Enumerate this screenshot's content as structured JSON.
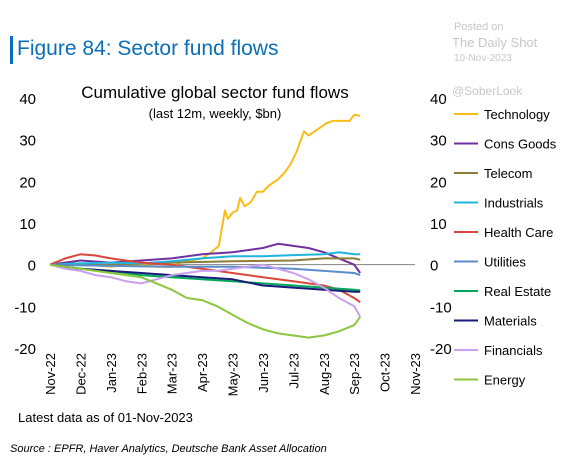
{
  "figure_title": "Figure 84: Sector fund flows",
  "watermark": {
    "posted": "Posted on",
    "site": "The Daily Shot",
    "date": "10-Nov-2023",
    "handle": "@SoberLook"
  },
  "footnote": "Latest data as of 01-Nov-2023",
  "source": "Source : EPFR, Haver Analytics, Deutsche Bank Asset Allocation",
  "chart_data": {
    "type": "line",
    "title": "Cumulative global sector fund flows",
    "subtitle": "(last 12m, weekly, $bn)",
    "xlabel": "",
    "ylabel": "",
    "x_start": "2022-11",
    "x_end": "2023-11",
    "x_ticks": [
      "Nov-22",
      "Dec-22",
      "Jan-23",
      "Feb-23",
      "Mar-23",
      "Apr-23",
      "May-23",
      "Jun-23",
      "Jul-23",
      "Aug-23",
      "Sep-23",
      "Oct-23",
      "Nov-23"
    ],
    "ylim": [
      -20,
      40
    ],
    "y_ticks": [
      "-20",
      "-10",
      "0",
      "10",
      "20",
      "30",
      "40"
    ],
    "grid": false,
    "legend": "right",
    "series": [
      {
        "name": "Technology",
        "color": "#f7be17",
        "points": [
          [
            0,
            0
          ],
          [
            0.5,
            0.5
          ],
          [
            1,
            0.2
          ],
          [
            1.5,
            -0.1
          ],
          [
            2,
            -0.5
          ],
          [
            2.5,
            0
          ],
          [
            3,
            0
          ],
          [
            3.5,
            -0.5
          ],
          [
            4,
            -0.5
          ],
          [
            4.3,
            0.5
          ],
          [
            4.5,
            0.8
          ],
          [
            5,
            1.5
          ],
          [
            5.3,
            3
          ],
          [
            5.55,
            4.5
          ],
          [
            5.75,
            13
          ],
          [
            5.85,
            11
          ],
          [
            6,
            12.5
          ],
          [
            6.15,
            13
          ],
          [
            6.25,
            16
          ],
          [
            6.4,
            14
          ],
          [
            6.6,
            15
          ],
          [
            6.8,
            17.5
          ],
          [
            7,
            17.5
          ],
          [
            7.2,
            19
          ],
          [
            7.5,
            20.5
          ],
          [
            7.7,
            22
          ],
          [
            7.9,
            24
          ],
          [
            8.1,
            27
          ],
          [
            8.25,
            30
          ],
          [
            8.35,
            32
          ],
          [
            8.5,
            31
          ],
          [
            8.7,
            32
          ],
          [
            8.9,
            33
          ],
          [
            9.1,
            34
          ],
          [
            9.3,
            34.5
          ],
          [
            9.6,
            34.5
          ],
          [
            9.85,
            34.5
          ],
          [
            10,
            36
          ],
          [
            10.2,
            35.7
          ]
        ]
      },
      {
        "name": "Cons Goods",
        "color": "#7030a0",
        "points": [
          [
            0,
            0
          ],
          [
            1,
            1
          ],
          [
            2,
            0.5
          ],
          [
            3,
            1
          ],
          [
            4,
            1.5
          ],
          [
            5,
            2.5
          ],
          [
            6,
            3
          ],
          [
            7,
            4
          ],
          [
            7.5,
            5
          ],
          [
            8,
            4.5
          ],
          [
            8.5,
            4
          ],
          [
            9,
            3
          ],
          [
            9.5,
            1.5
          ],
          [
            10,
            0
          ],
          [
            10.2,
            -2
          ]
        ]
      },
      {
        "name": "Telecom",
        "color": "#8b7d3a",
        "points": [
          [
            0,
            0
          ],
          [
            2,
            0
          ],
          [
            4,
            0.5
          ],
          [
            6,
            0.8
          ],
          [
            8,
            1
          ],
          [
            9,
            1.5
          ],
          [
            10,
            1.5
          ],
          [
            10.2,
            1.2
          ]
        ]
      },
      {
        "name": "Industrials",
        "color": "#21b4dd",
        "points": [
          [
            0,
            0
          ],
          [
            1,
            0.3
          ],
          [
            2,
            0.5
          ],
          [
            3,
            0.3
          ],
          [
            4,
            0.8
          ],
          [
            5,
            1.5
          ],
          [
            6,
            2
          ],
          [
            7,
            2
          ],
          [
            8,
            2.3
          ],
          [
            9,
            2.5
          ],
          [
            9.5,
            3
          ],
          [
            10,
            2.5
          ],
          [
            10.2,
            2.5
          ]
        ]
      },
      {
        "name": "Health Care",
        "color": "#d9473a",
        "points": [
          [
            0,
            0
          ],
          [
            0.5,
            1.5
          ],
          [
            1,
            2.5
          ],
          [
            1.5,
            2.2
          ],
          [
            2,
            1.5
          ],
          [
            2.5,
            1
          ],
          [
            3,
            0.5
          ],
          [
            4,
            0
          ],
          [
            5,
            -1
          ],
          [
            6,
            -2
          ],
          [
            7,
            -3
          ],
          [
            8,
            -4
          ],
          [
            9,
            -5
          ],
          [
            9.5,
            -6
          ],
          [
            10,
            -8
          ],
          [
            10.2,
            -9
          ]
        ]
      },
      {
        "name": "Utilities",
        "color": "#5b8ccc",
        "points": [
          [
            0,
            0
          ],
          [
            2,
            -0.3
          ],
          [
            4,
            -0.5
          ],
          [
            6,
            -0.5
          ],
          [
            8,
            -1
          ],
          [
            9,
            -1.5
          ],
          [
            10,
            -2
          ],
          [
            10.2,
            -2.5
          ]
        ]
      },
      {
        "name": "Real Estate",
        "color": "#00a65a",
        "points": [
          [
            0,
            0
          ],
          [
            1,
            -1
          ],
          [
            2,
            -1.5
          ],
          [
            3,
            -2.5
          ],
          [
            4,
            -3
          ],
          [
            5,
            -3.5
          ],
          [
            6,
            -4
          ],
          [
            7,
            -4.5
          ],
          [
            8,
            -5
          ],
          [
            9,
            -5.5
          ],
          [
            10,
            -6
          ],
          [
            10.2,
            -6.2
          ]
        ]
      },
      {
        "name": "Materials",
        "color": "#1a1a7a",
        "points": [
          [
            0,
            0
          ],
          [
            1,
            -1
          ],
          [
            2,
            -1.5
          ],
          [
            3,
            -2
          ],
          [
            4,
            -2.5
          ],
          [
            5,
            -3
          ],
          [
            6,
            -3.5
          ],
          [
            7,
            -5
          ],
          [
            8,
            -5.5
          ],
          [
            9,
            -6
          ],
          [
            10,
            -6.5
          ],
          [
            10.2,
            -6.5
          ]
        ]
      },
      {
        "name": "Financials",
        "color": "#c9a0f0",
        "points": [
          [
            0,
            0
          ],
          [
            0.5,
            -1
          ],
          [
            1,
            -1.5
          ],
          [
            1.5,
            -2.5
          ],
          [
            2,
            -3
          ],
          [
            2.5,
            -4
          ],
          [
            3,
            -4.5
          ],
          [
            3.5,
            -3.5
          ],
          [
            4,
            -2.5
          ],
          [
            5,
            -1.5
          ],
          [
            5.5,
            -1.5
          ],
          [
            6,
            -1
          ],
          [
            6.5,
            -0.5
          ],
          [
            7,
            0
          ],
          [
            7.5,
            -1
          ],
          [
            8,
            -2
          ],
          [
            8.5,
            -3.5
          ],
          [
            9,
            -5.5
          ],
          [
            9.5,
            -8
          ],
          [
            10,
            -10
          ],
          [
            10.2,
            -12.5
          ]
        ]
      },
      {
        "name": "Energy",
        "color": "#8cc63f",
        "points": [
          [
            0,
            0
          ],
          [
            1,
            -1
          ],
          [
            2,
            -2
          ],
          [
            3,
            -3
          ],
          [
            3.5,
            -4.5
          ],
          [
            4,
            -6
          ],
          [
            4.5,
            -8
          ],
          [
            5,
            -8.5
          ],
          [
            5.5,
            -10
          ],
          [
            6,
            -12
          ],
          [
            6.5,
            -14
          ],
          [
            7,
            -15.5
          ],
          [
            7.5,
            -16.5
          ],
          [
            8,
            -17
          ],
          [
            8.5,
            -17.5
          ],
          [
            9,
            -17
          ],
          [
            9.5,
            -16
          ],
          [
            10,
            -14.5
          ],
          [
            10.2,
            -12.5
          ]
        ]
      }
    ]
  }
}
